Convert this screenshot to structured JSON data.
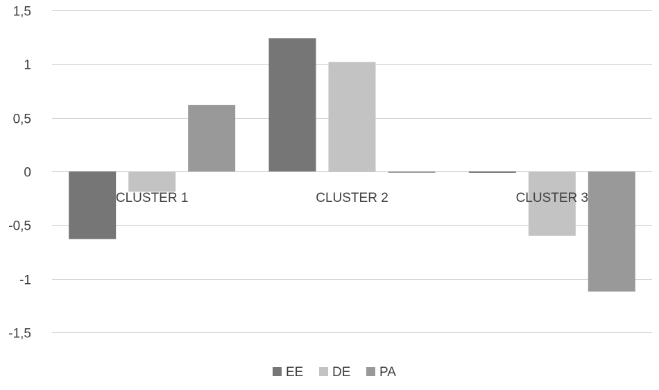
{
  "chart_data": {
    "type": "bar",
    "title": "",
    "xlabel": "",
    "ylabel": "",
    "categories": [
      "CLUSTER 1",
      "CLUSTER 2",
      "CLUSTER 3"
    ],
    "series": [
      {
        "name": "EE",
        "color": "#767676",
        "values": [
          -0.63,
          1.24,
          -0.01
        ]
      },
      {
        "name": "DE",
        "color": "#c3c3c3",
        "values": [
          -0.19,
          1.02,
          -0.6
        ]
      },
      {
        "name": "PA",
        "color": "#999999",
        "values": [
          0.62,
          -0.01,
          -1.12
        ]
      }
    ],
    "ylim": [
      -1.5,
      1.5
    ],
    "yticks": [
      1.5,
      1,
      0.5,
      0,
      -0.5,
      -1,
      -1.5
    ],
    "ytick_labels": [
      "1,5",
      "1",
      "0,5",
      "0",
      "-0,5",
      "-1",
      "-1,5"
    ],
    "grid": true,
    "legend": "bottom"
  }
}
